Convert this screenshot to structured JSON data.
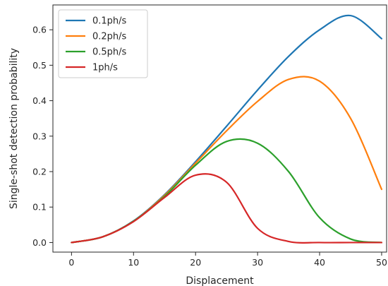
{
  "chart_data": {
    "type": "line",
    "xlabel": "Displacement",
    "ylabel": "Single-shot detection probability",
    "xlim": [
      -3.0,
      50.8
    ],
    "ylim": [
      -0.027,
      0.67
    ],
    "xticks": [
      0,
      10,
      20,
      30,
      40,
      50
    ],
    "yticks": [
      0.0,
      0.1,
      0.2,
      0.3,
      0.4,
      0.5,
      0.6
    ],
    "grid": false,
    "legend_position": "top-left",
    "x": [
      0,
      5,
      10,
      15,
      20,
      25,
      30,
      35,
      40,
      45,
      50
    ],
    "series": [
      {
        "name": "0.1ph/s",
        "color": "#1f77b4",
        "values": [
          0.0,
          0.016,
          0.061,
          0.135,
          0.228,
          0.328,
          0.43,
          0.525,
          0.6,
          0.64,
          0.575
        ]
      },
      {
        "name": "0.2ph/s",
        "color": "#ff7f0e",
        "values": [
          0.0,
          0.016,
          0.06,
          0.133,
          0.224,
          0.315,
          0.398,
          0.46,
          0.455,
          0.35,
          0.15
        ]
      },
      {
        "name": "0.5ph/s",
        "color": "#2ca02c",
        "values": [
          0.0,
          0.016,
          0.06,
          0.13,
          0.218,
          0.285,
          0.28,
          0.2,
          0.07,
          0.01,
          0.0
        ]
      },
      {
        "name": "1ph/s",
        "color": "#d62728",
        "values": [
          0.0,
          0.016,
          0.059,
          0.127,
          0.19,
          0.17,
          0.04,
          0.003,
          0.0,
          0.0,
          0.0
        ]
      }
    ]
  }
}
